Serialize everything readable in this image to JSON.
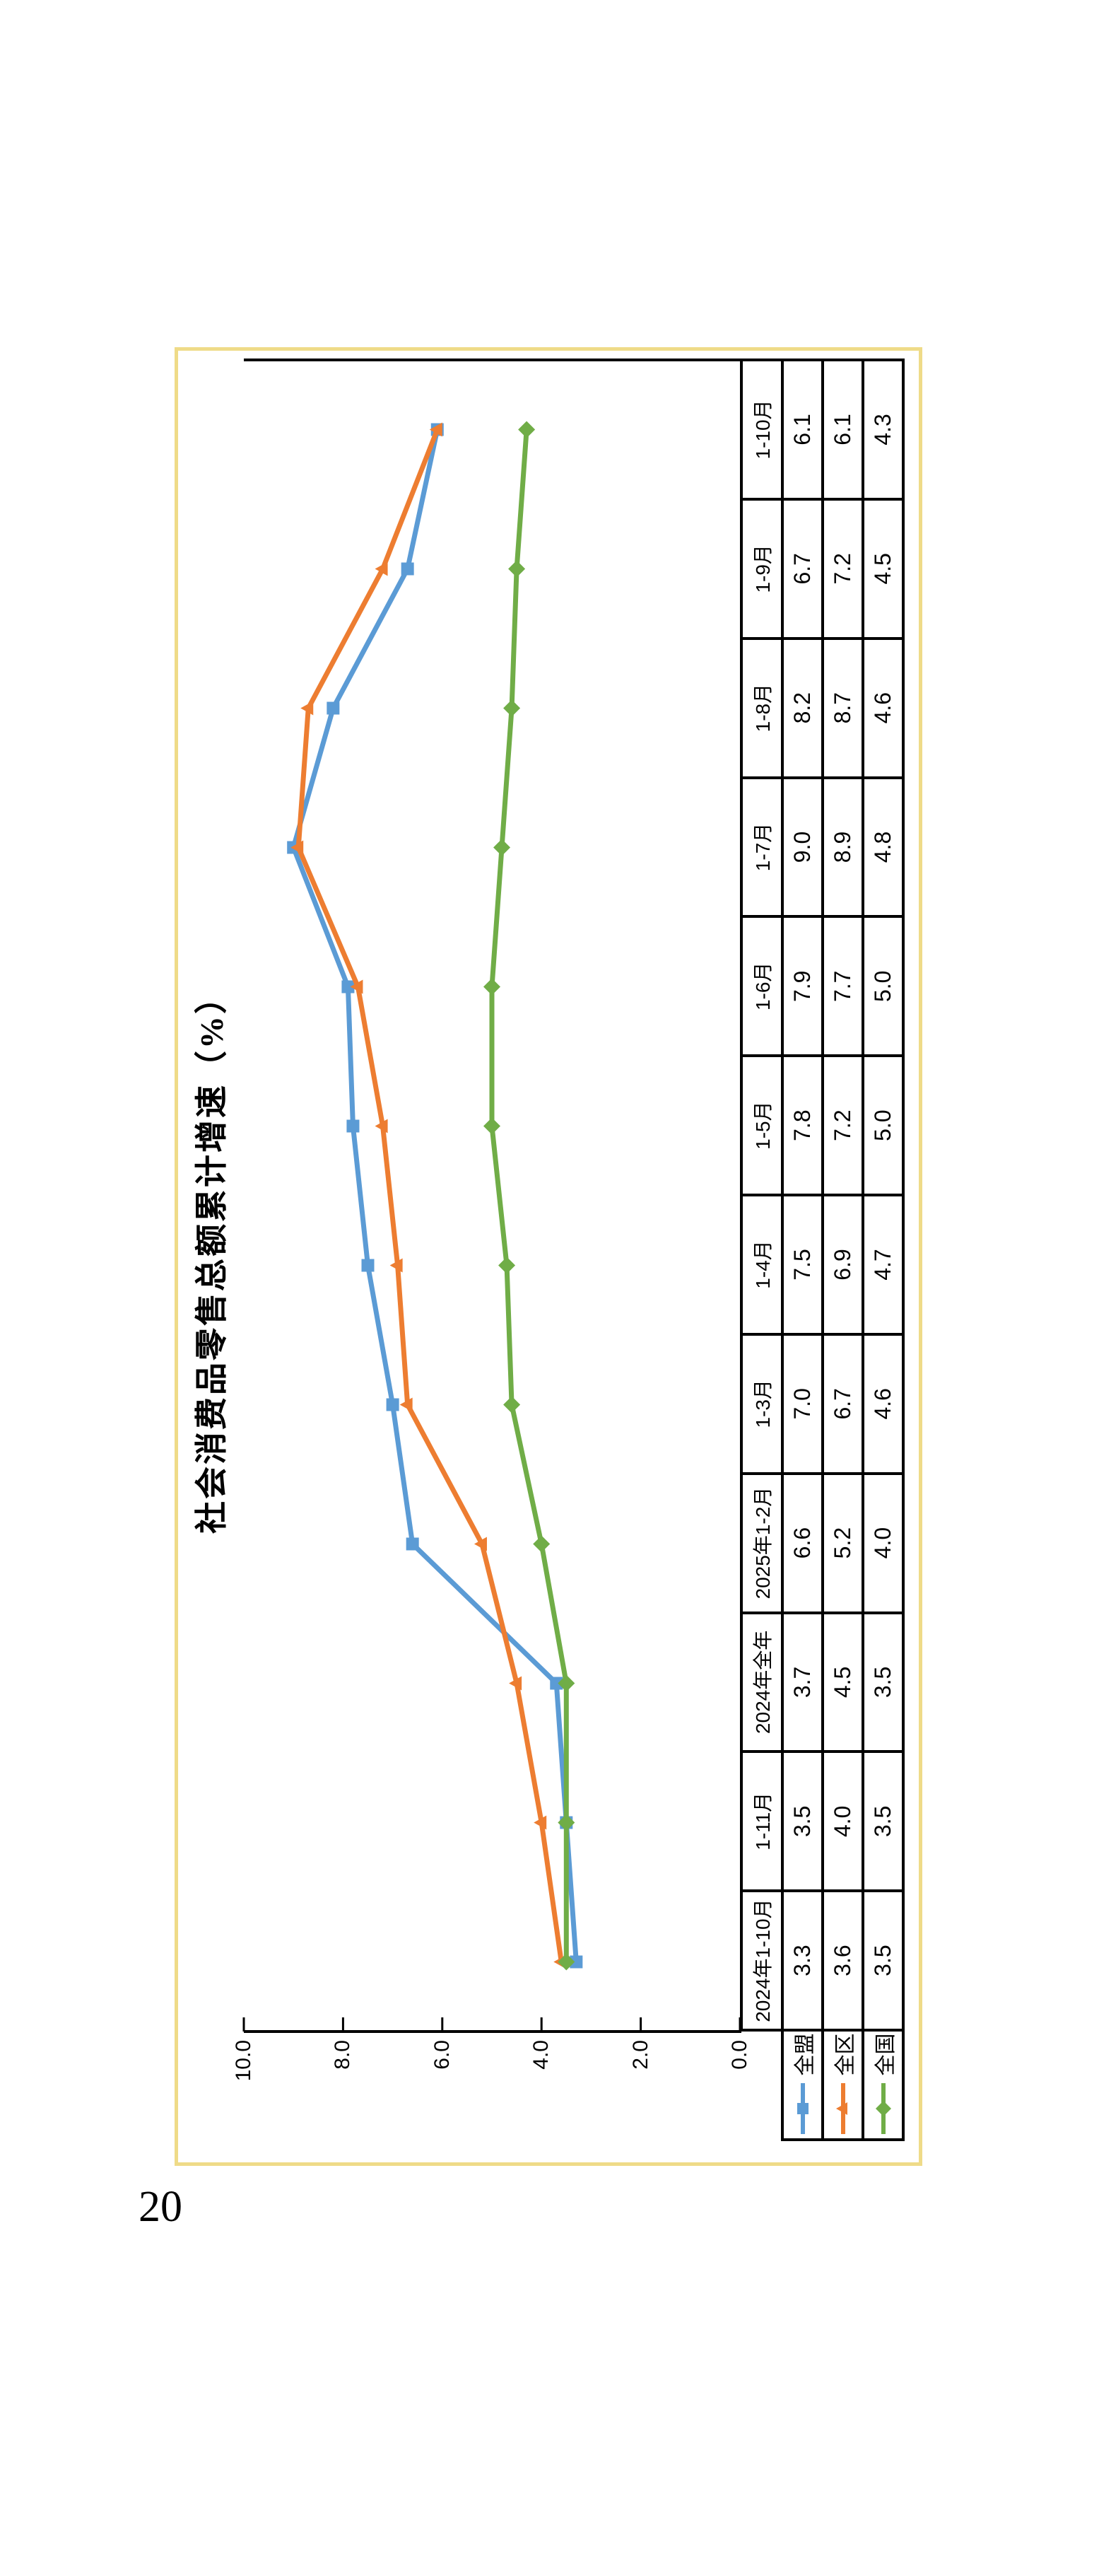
{
  "page": {
    "number": "20"
  },
  "colors": {
    "frame_border": "#efdb88",
    "axis": "#000000",
    "series_blue": "#5B9BD5",
    "series_orange": "#ED7D31",
    "series_green": "#70AD47"
  },
  "chart_data": {
    "type": "line",
    "title": "社会消费品零售总额累计增速（%）",
    "categories": [
      "2024年1-10月",
      "1-11月",
      "2024年全年",
      "2025年1-2月",
      "1-3月",
      "1-4月",
      "1-5月",
      "1-6月",
      "1-7月",
      "1-8月",
      "1-9月",
      "1-10月"
    ],
    "series": [
      {
        "name": "全盟",
        "marker": "square",
        "color": "#5B9BD5",
        "values": [
          3.3,
          3.5,
          3.7,
          6.6,
          7.0,
          7.5,
          7.8,
          7.9,
          9.0,
          8.2,
          6.7,
          6.1
        ]
      },
      {
        "name": "全区",
        "marker": "triangle",
        "color": "#ED7D31",
        "values": [
          3.6,
          4.0,
          4.5,
          5.2,
          6.7,
          6.9,
          7.2,
          7.7,
          8.9,
          8.7,
          7.2,
          6.1
        ]
      },
      {
        "name": "全国",
        "marker": "diamond",
        "color": "#70AD47",
        "values": [
          3.5,
          3.5,
          3.5,
          4.0,
          4.6,
          4.7,
          5.0,
          5.0,
          4.8,
          4.6,
          4.5,
          4.3
        ]
      }
    ],
    "ylim": [
      0,
      10
    ],
    "ytick_labels": [
      "0.0",
      "2.0",
      "4.0",
      "6.0",
      "8.0",
      "10.0"
    ],
    "grid": false,
    "data_table": true,
    "legend_position": "data-table-left-column"
  }
}
